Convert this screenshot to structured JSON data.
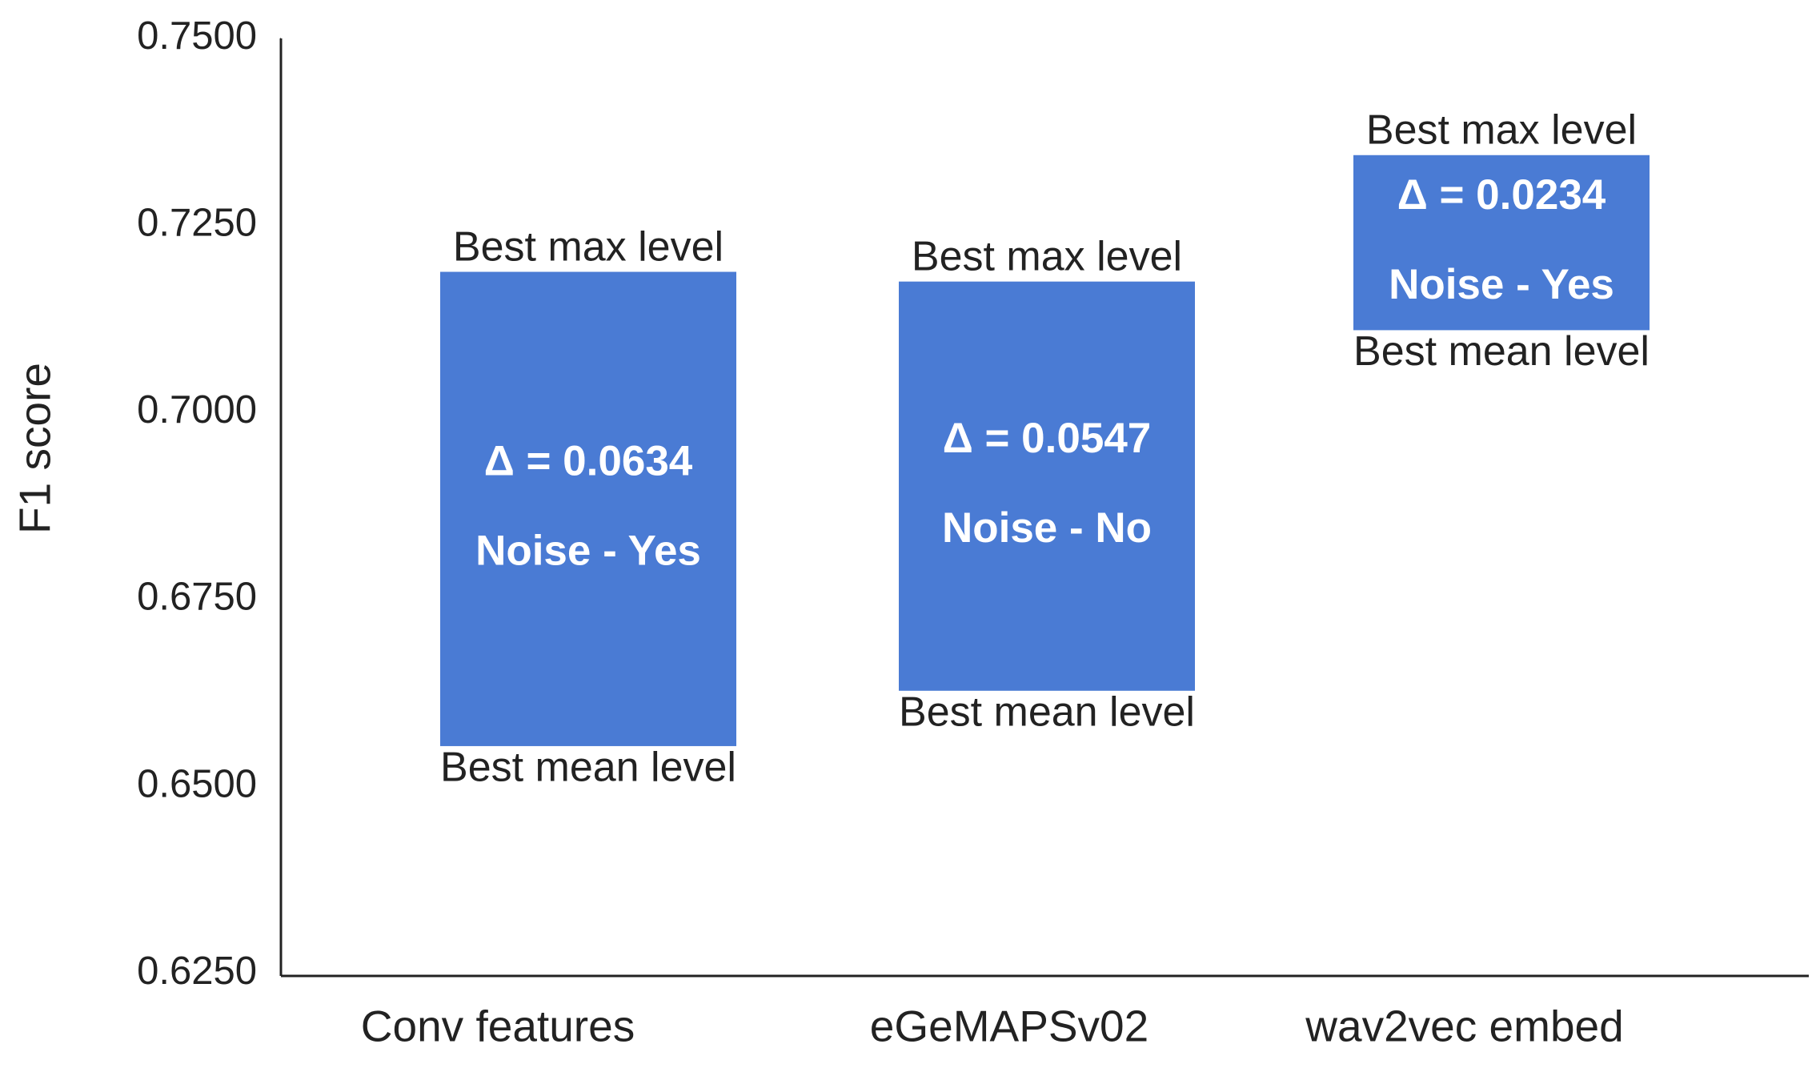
{
  "chart_data": {
    "type": "floating-bar",
    "y_label": "F1 score",
    "categories": [
      "Conv features",
      "eGeMAPSv02",
      "wav2vec embed"
    ],
    "low": [
      0.6554,
      0.6628,
      0.711
    ],
    "high": [
      0.7188,
      0.7175,
      0.7344
    ],
    "color": "#4a7bd4",
    "top_labels": [
      "Best max level",
      "Best max level",
      "Best max level"
    ],
    "bottom_labels": [
      "Best mean level",
      "Best mean level",
      "Best mean level"
    ],
    "delta_labels": [
      "Δ = 0.0634",
      "Δ = 0.0547",
      "Δ = 0.0234"
    ],
    "noise_labels": [
      "Noise - Yes",
      "Noise - No",
      "Noise - Yes"
    ],
    "ylim": [
      0.625,
      0.75
    ],
    "yticks": [
      {
        "value": 0.625,
        "label": "0.6250"
      },
      {
        "value": 0.65,
        "label": "0.6500"
      },
      {
        "value": 0.675,
        "label": "0.6750"
      },
      {
        "value": 0.7,
        "label": "0.7000"
      },
      {
        "value": 0.725,
        "label": "0.7250"
      },
      {
        "value": 0.75,
        "label": "0.7500"
      }
    ],
    "grid": false
  }
}
